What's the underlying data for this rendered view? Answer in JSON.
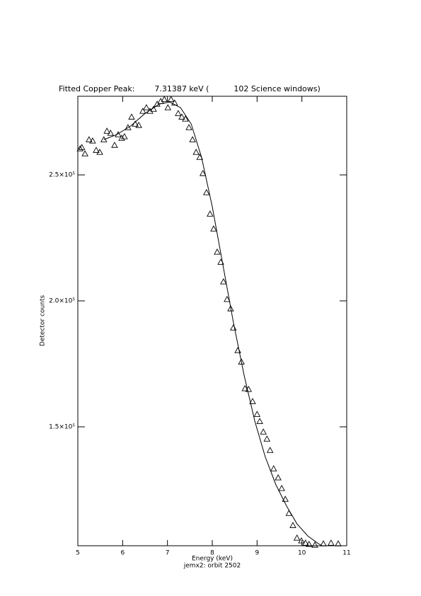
{
  "chart_data": {
    "type": "scatter",
    "title": "Fitted Copper Peak:        7.31387 keV (          102 Science windows)",
    "x_label": "Energy (keV)",
    "subtitle": "jemx2: orbit 2502",
    "y_label": "Detector counts",
    "xlim": [
      5,
      11
    ],
    "xticks": [
      5,
      6,
      7,
      8,
      9,
      10,
      11
    ],
    "ylim": [
      102800,
      281200
    ],
    "yticks": [
      {
        "value": 150000,
        "label": "1.5×10⁵"
      },
      {
        "value": 200000,
        "label": "2.0×10⁵"
      },
      {
        "value": 250000,
        "label": "2.5×10⁵"
      }
    ],
    "series": [
      {
        "style": "triangle",
        "color": "#000000",
        "x": [
          5.05,
          5.09,
          5.16,
          5.25,
          5.33,
          5.41,
          5.49,
          5.58,
          5.65,
          5.73,
          5.82,
          5.9,
          5.98,
          6.04,
          6.12,
          6.2,
          6.28,
          6.36,
          6.45,
          6.53,
          6.61,
          6.69,
          6.77,
          6.85,
          6.93,
          7.01,
          7.08,
          7.16,
          7.24,
          7.32,
          7.4,
          7.48,
          7.56,
          7.64,
          7.72,
          7.79,
          7.87,
          7.95,
          8.03,
          8.11,
          8.19,
          8.25,
          8.33,
          8.41,
          8.47,
          8.57,
          8.65,
          8.73,
          8.81,
          8.9,
          9.0,
          9.06,
          9.14,
          9.22,
          9.29,
          9.37,
          9.47,
          9.55,
          9.63,
          9.71,
          9.8,
          9.89,
          9.99,
          10.08,
          10.16,
          10.29,
          10.48,
          10.65,
          10.81
        ],
        "values": [
          260400,
          260900,
          258400,
          264000,
          263500,
          259800,
          259000,
          264000,
          267400,
          266600,
          261800,
          266000,
          264600,
          265200,
          268800,
          273000,
          270200,
          269700,
          275300,
          276700,
          275300,
          276100,
          278100,
          279200,
          280000,
          276700,
          280000,
          278600,
          274400,
          273000,
          272200,
          268800,
          264000,
          259000,
          257000,
          250600,
          243000,
          234500,
          228600,
          219400,
          215400,
          207600,
          200600,
          196900,
          189300,
          180300,
          175800,
          165200,
          164900,
          160100,
          155000,
          152200,
          148000,
          145200,
          140700,
          133400,
          129800,
          125600,
          121300,
          115700,
          110900,
          105900,
          104800,
          103900,
          103400,
          103100,
          103600,
          103900,
          103600
        ]
      },
      {
        "style": "line",
        "color": "#000000",
        "x": [
          5.58,
          5.87,
          6.18,
          6.5,
          6.82,
          7.05,
          7.29,
          7.53,
          7.76,
          8.0,
          8.24,
          8.47,
          8.71,
          8.95,
          9.18,
          9.42,
          9.66,
          9.89,
          10.13,
          10.37,
          10.45
        ],
        "values": [
          264000,
          266000,
          269400,
          274400,
          278100,
          278900,
          276700,
          270200,
          257000,
          237400,
          214000,
          191600,
          170500,
          152200,
          138200,
          127000,
          118500,
          111500,
          106700,
          103600,
          102800
        ]
      }
    ]
  }
}
